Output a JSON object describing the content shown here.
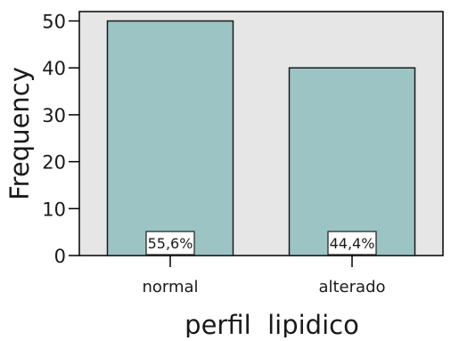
{
  "chart_data": {
    "type": "bar",
    "categories": [
      "normal",
      "alterado"
    ],
    "values": [
      50,
      40
    ],
    "bar_labels": [
      "55,6%",
      "44,4%"
    ],
    "title": "",
    "xlabel": "perfil  lipidico",
    "ylabel": "Frequency",
    "ylim": [
      0,
      52
    ],
    "yticks": [
      0,
      10,
      20,
      30,
      40,
      50
    ],
    "grid": false,
    "legend": "none",
    "colors": {
      "bar_fill": "#9cc4c4",
      "plot_background": "#e6e6e6",
      "frame": "#000000",
      "bar_border": "#1a1a1a",
      "label_box_fill": "#ffffff"
    }
  }
}
